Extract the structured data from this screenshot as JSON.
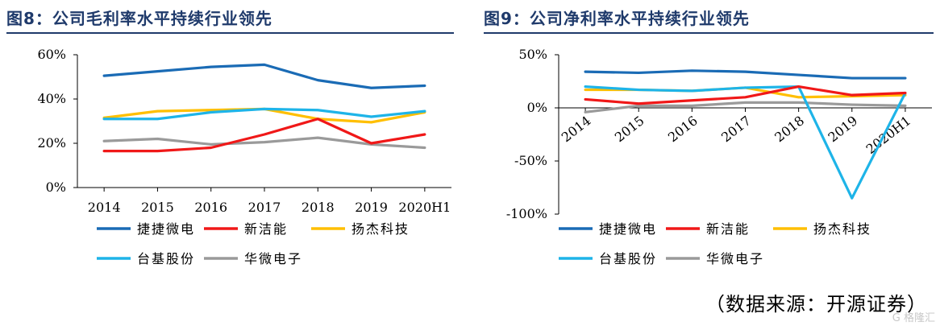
{
  "source_note": "（数据来源：开源证券）",
  "watermark": "G 格隆汇",
  "colors": {
    "title": "#1f3a6b",
    "series": [
      "#1a6bb5",
      "#f01818",
      "#ffbf00",
      "#1eb4e8",
      "#9a9a9a"
    ]
  },
  "chart_data": [
    {
      "type": "line",
      "title": "图8：公司毛利率水平持续行业领先",
      "categories": [
        "2014",
        "2015",
        "2016",
        "2017",
        "2018",
        "2019",
        "2020H1"
      ],
      "yticks": [
        "0%",
        "20%",
        "40%",
        "60%"
      ],
      "ylim": [
        0,
        60
      ],
      "grid": false,
      "legend_position": "bottom",
      "xlabel": "",
      "ylabel": "",
      "series": [
        {
          "name": "捷捷微电",
          "values": [
            50.5,
            52.5,
            54.5,
            55.5,
            48.5,
            45,
            46
          ]
        },
        {
          "name": "新洁能",
          "values": [
            16.5,
            16.5,
            18,
            24,
            31,
            20,
            24
          ]
        },
        {
          "name": "扬杰科技",
          "values": [
            31.5,
            34.5,
            35,
            35.5,
            31,
            29.5,
            34
          ]
        },
        {
          "name": "台基股份",
          "values": [
            31,
            31,
            34,
            35.5,
            35,
            32,
            34.5
          ]
        },
        {
          "name": "华微电子",
          "values": [
            21,
            22,
            19.5,
            20.5,
            22.5,
            19.5,
            18
          ]
        }
      ]
    },
    {
      "type": "line",
      "title": "图9：公司净利率水平持续行业领先",
      "categories": [
        "2014",
        "2015",
        "2016",
        "2017",
        "2018",
        "2019",
        "2020H1"
      ],
      "yticks": [
        "-100%",
        "-50%",
        "0%",
        "50%"
      ],
      "ylim": [
        -100,
        50
      ],
      "grid": false,
      "legend_position": "bottom",
      "xlabel": "",
      "ylabel": "",
      "series": [
        {
          "name": "捷捷微电",
          "values": [
            34,
            33,
            35,
            34,
            31,
            28,
            28
          ]
        },
        {
          "name": "新洁能",
          "values": [
            8,
            4,
            7,
            10,
            20,
            12,
            14
          ]
        },
        {
          "name": "扬杰科技",
          "values": [
            17,
            17,
            16,
            19,
            10,
            11,
            12
          ]
        },
        {
          "name": "台基股份",
          "values": [
            20,
            17,
            16,
            19,
            20,
            -85,
            14
          ]
        },
        {
          "name": "华微电子",
          "values": [
            -4,
            2,
            2,
            5,
            5,
            3,
            2
          ]
        }
      ]
    }
  ]
}
